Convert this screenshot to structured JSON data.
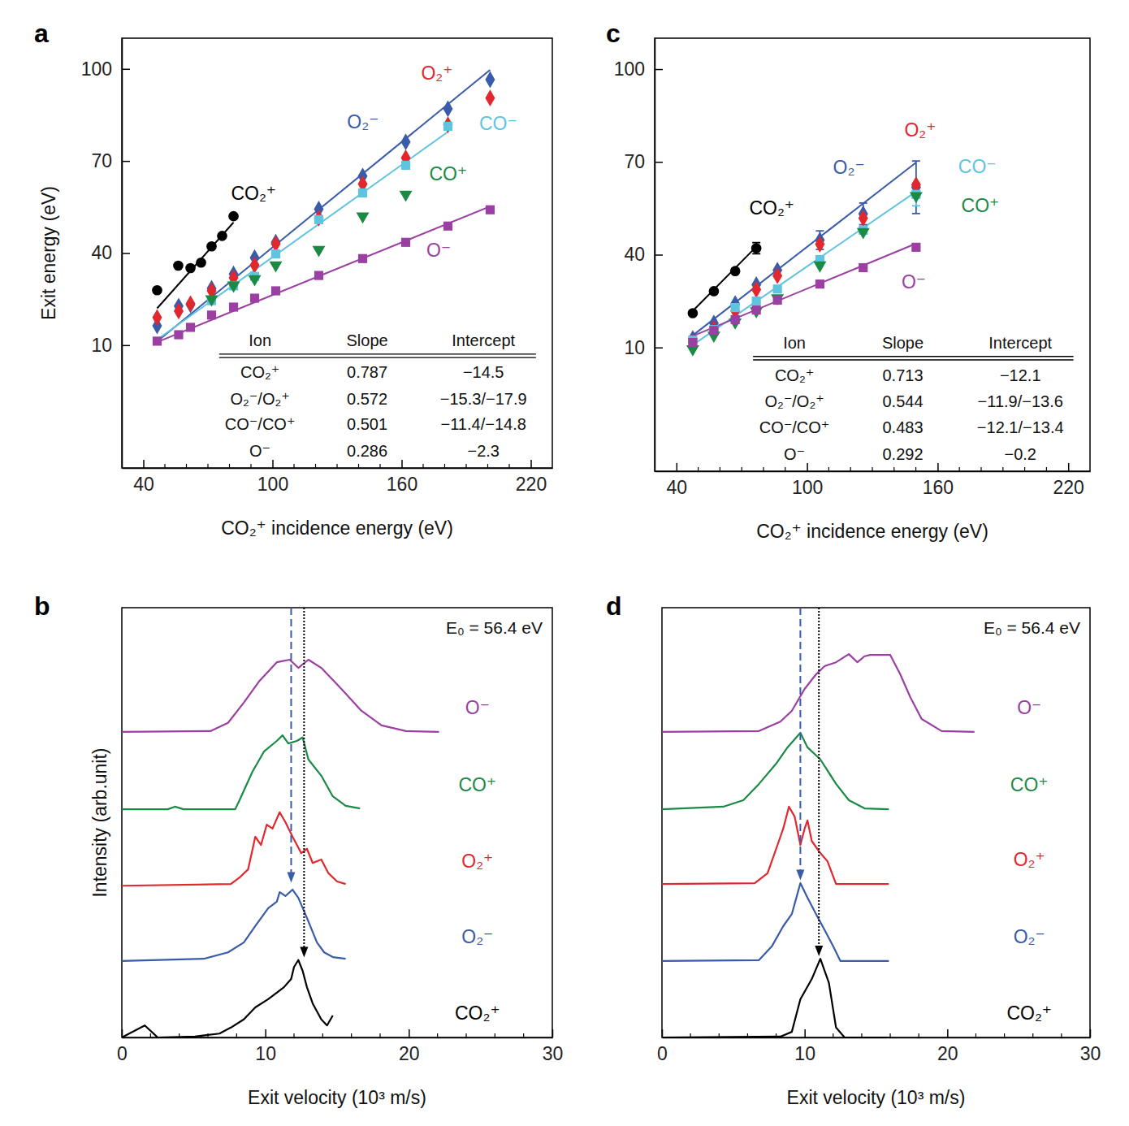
{
  "chart_data": [
    {
      "type": "scatter",
      "label": "a",
      "x_label": "CO₂⁺ incidence energy (eV)",
      "y_label": "Exit energy (eV)",
      "xlim": [
        30,
        230
      ],
      "ylim": [
        -30,
        110
      ],
      "xticks": [
        40,
        100,
        160,
        220
      ],
      "xminor_ticks": [
        50,
        60,
        70,
        80,
        90,
        110,
        120,
        130,
        140,
        150,
        170,
        180,
        190,
        200,
        210
      ],
      "yticks": [
        10,
        40,
        70,
        100
      ],
      "series": [
        {
          "name": "CO₂⁺",
          "color": "#000000",
          "marker": "circle",
          "x": [
            46.4,
            56.2,
            61.9,
            66.8,
            71.7,
            76.6,
            81.9
          ],
          "values": [
            27.9,
            35.9,
            35.1,
            36.9,
            42.2,
            45.6,
            52.0
          ],
          "fit": {
            "x": [
              46.4,
              81.9
            ],
            "values": [
              22.0,
              50.0
            ]
          }
        },
        {
          "name": "O₂⁻",
          "color": "#3a5ba9",
          "marker": "diamond",
          "x": [
            46.4,
            56.4,
            61.9,
            71.7,
            81.9,
            91.7,
            101.5,
            121.5,
            141.9,
            161.9,
            181.5,
            201.1
          ],
          "values": [
            16.3,
            22.7,
            23.2,
            28.5,
            33.2,
            38.5,
            43.5,
            54.3,
            65.1,
            76.2,
            87.0,
            96.5
          ],
          "fit": {
            "x": [
              46.4,
              201.1
            ],
            "values": [
              11.2,
              99.7
            ]
          }
        },
        {
          "name": "O₂⁺",
          "color": "#e0282e",
          "marker": "diamond",
          "x": [
            46.4,
            56.4,
            61.9,
            71.7,
            81.9,
            91.7,
            101.5,
            121.5,
            141.9,
            161.9,
            181.5,
            201.1
          ],
          "values": [
            19.0,
            21.1,
            23.5,
            27.7,
            31.9,
            36.1,
            43.0,
            51.4,
            62.5,
            71.0,
            81.8,
            90.5
          ]
        },
        {
          "name": "CO⁻",
          "color": "#5fc4e0",
          "marker": "square",
          "x": [
            46.4,
            56.4,
            61.9,
            71.7,
            81.9,
            91.7,
            101.5,
            121.5,
            141.9,
            161.9,
            181.5,
            201.1
          ],
          "values": [
            null,
            null,
            null,
            24.5,
            29.3,
            32.4,
            39.7,
            50.9,
            59.6,
            68.6,
            81.3,
            null
          ],
          "fit": {
            "x": [
              46.4,
              181.5
            ],
            "values": [
              11.8,
              79.5
            ]
          }
        },
        {
          "name": "CO⁺",
          "color": "#1b8a45",
          "marker": "triangle-down",
          "x": [
            46.4,
            56.4,
            61.9,
            71.7,
            81.9,
            91.7,
            101.5,
            121.5,
            141.9,
            161.9,
            181.5,
            201.1
          ],
          "values": [
            null,
            null,
            null,
            25.0,
            29.5,
            31.6,
            36.1,
            41.1,
            52.0,
            59.1,
            null,
            null
          ]
        },
        {
          "name": "O⁻",
          "color": "#9b3fa3",
          "marker": "square",
          "x": [
            46.4,
            56.4,
            61.9,
            71.7,
            81.9,
            91.7,
            101.5,
            121.5,
            141.9,
            161.9,
            181.5,
            201.1
          ],
          "values": [
            11.3,
            13.4,
            15.8,
            19.8,
            22.4,
            25.3,
            27.7,
            32.7,
            38.2,
            43.5,
            48.8,
            54.1
          ],
          "fit": {
            "x": [
              46.4,
              201.1
            ],
            "values": [
              11.0,
              55.2
            ]
          }
        }
      ],
      "table": {
        "columns": [
          "Ion",
          "Slope",
          "Intercept"
        ],
        "rows": [
          [
            "CO₂⁺",
            "0.787",
            "−14.5"
          ],
          [
            "O₂⁻/O₂⁺",
            "0.572",
            "−15.3/−17.9"
          ],
          [
            "CO⁻/CO⁺",
            "0.501",
            "−11.4/−14.8"
          ],
          [
            "O⁻",
            "0.286",
            "−2.3"
          ]
        ]
      }
    },
    {
      "type": "line",
      "label": "b",
      "x_label": "Exit velocity (10³ m/s)",
      "y_label": "Intensity (arb.unit)",
      "xlim": [
        0,
        30
      ],
      "ylim": [
        0,
        100
      ],
      "xticks": [
        0,
        10,
        20,
        30
      ],
      "xminor_ticks": [
        2,
        4,
        6,
        8,
        12,
        14,
        16,
        18,
        22,
        24,
        26,
        28
      ],
      "tick_labels": "x",
      "annotation": "E₀ = 56.4 eV",
      "arrows": [
        {
          "x": 11.8,
          "y": 36.0,
          "color": "#3a5ba9",
          "line_style": "dashed"
        },
        {
          "x": 12.7,
          "y": 18.6,
          "color": "#000000",
          "line_style": "dotted"
        }
      ],
      "series": [
        {
          "name": "O⁻",
          "color": "#9b3fa3",
          "x": [
            0,
            6.2,
            7.4,
            8.5,
            9.6,
            10.8,
            11.7,
            12.3,
            13.0,
            13.9,
            15.3,
            16.7,
            18.1,
            19.8,
            22.1
          ],
          "values": [
            71.1,
            71.3,
            73.2,
            77.9,
            83.0,
            87.3,
            87.9,
            86.0,
            87.9,
            86.0,
            81.1,
            76.0,
            72.6,
            71.3,
            71.1
          ]
        },
        {
          "name": "CO⁺",
          "color": "#1b8a45",
          "x": [
            0,
            3.2,
            3.7,
            4.3,
            7.9,
            8.2,
            9.1,
            9.9,
            10.8,
            11.2,
            11.6,
            12.2,
            12.6,
            13.0,
            13.9,
            14.7,
            15.6,
            16.6
          ],
          "values": [
            53.1,
            53.1,
            53.7,
            53.1,
            53.1,
            55.2,
            61.8,
            66.5,
            69.0,
            70.3,
            68.4,
            69.0,
            69.8,
            64.7,
            60.9,
            56.1,
            53.9,
            53.3
          ]
        },
        {
          "name": "O₂⁺",
          "color": "#e0282e",
          "x": [
            0,
            7.6,
            8.2,
            8.8,
            9.3,
            9.7,
            10.1,
            10.5,
            11.0,
            11.4,
            11.9,
            12.5,
            12.9,
            13.3,
            13.9,
            14.4,
            15.0,
            15.6
          ],
          "values": [
            35.3,
            35.7,
            37.2,
            39.1,
            46.7,
            44.8,
            49.5,
            48.6,
            52.4,
            50.1,
            46.7,
            42.9,
            43.9,
            40.6,
            41.4,
            38.2,
            36.3,
            35.7
          ]
        },
        {
          "name": "O₂⁻",
          "color": "#3a5ba9",
          "x": [
            0,
            5.7,
            7.4,
            8.5,
            9.3,
            10.2,
            10.8,
            11.0,
            11.4,
            11.9,
            12.3,
            12.9,
            13.6,
            14.1,
            14.7,
            15.6
          ],
          "values": [
            17.8,
            18.3,
            19.8,
            22.1,
            25.9,
            30.1,
            31.6,
            33.8,
            32.9,
            34.4,
            32.5,
            27.8,
            22.1,
            19.8,
            18.7,
            18.3
          ]
        },
        {
          "name": "CO₂⁺",
          "color": "#000000",
          "x": [
            0,
            1.6,
            2.5,
            5.1,
            6.8,
            7.6,
            8.5,
            9.3,
            10.2,
            10.8,
            11.3,
            11.8,
            12.0,
            12.3,
            12.6,
            12.9,
            13.3,
            13.9,
            14.3,
            14.7
          ],
          "values": [
            0,
            2.8,
            0,
            0.2,
            0.9,
            2.3,
            4.2,
            7.0,
            8.9,
            10.4,
            11.7,
            13.6,
            16.4,
            18.0,
            15.5,
            11.7,
            7.9,
            4.2,
            2.8,
            5.1
          ]
        }
      ]
    },
    {
      "type": "scatter",
      "label": "c",
      "x_label": "CO₂⁺ incidence energy  (eV)",
      "xlim": [
        30,
        230
      ],
      "ylim": [
        -30,
        110
      ],
      "xticks": [
        40,
        100,
        160,
        220
      ],
      "xminor_ticks": [
        50,
        60,
        70,
        80,
        90,
        110,
        120,
        130,
        140,
        150,
        170,
        180,
        190,
        200,
        210
      ],
      "yticks": [
        10,
        40,
        70,
        100
      ],
      "series": [
        {
          "name": "CO₂⁺",
          "color": "#000000",
          "marker": "circle",
          "x": [
            47.5,
            57.2,
            67.0,
            76.7
          ],
          "values": [
            21.1,
            28.2,
            34.7,
            42.1
          ],
          "errors": [
            null,
            null,
            null,
            1.8
          ],
          "fit": {
            "x": [
              47.5,
              76.7
            ],
            "values": [
              21.8,
              42.6
            ]
          }
        },
        {
          "name": "O₂⁻",
          "color": "#3a5ba9",
          "marker": "diamond",
          "x": [
            47.5,
            57.2,
            67.0,
            76.7,
            86.4,
            105.9,
            125.8,
            150.1
          ],
          "values": [
            12.9,
            17.9,
            24.2,
            30.3,
            35.0,
            44.7,
            53.2,
            61.8
          ],
          "errors": [
            null,
            null,
            null,
            null,
            null,
            3.0,
            3.5,
            8.5
          ],
          "fit": {
            "x": [
              47.5,
              150.1
            ],
            "values": [
              13.9,
              69.8
            ]
          }
        },
        {
          "name": "O₂⁺",
          "color": "#e0282e",
          "marker": "diamond",
          "x": [
            47.5,
            57.2,
            67.0,
            76.7,
            86.4,
            105.9,
            125.8,
            150.1
          ],
          "values": [
            11.8,
            16.1,
            21.8,
            28.7,
            33.2,
            43.4,
            51.8,
            62.6
          ]
        },
        {
          "name": "CO⁻",
          "color": "#5fc4e0",
          "marker": "square",
          "x": [
            47.5,
            57.2,
            67.0,
            76.7,
            86.4,
            105.9,
            125.8,
            150.1
          ],
          "values": [
            12.4,
            15.8,
            22.9,
            25.0,
            28.9,
            38.4,
            47.9,
            59.5
          ],
          "errors": [
            null,
            null,
            null,
            null,
            null,
            null,
            null,
            3.7
          ],
          "fit": {
            "x": [
              47.5,
              150.1
            ],
            "values": [
              10.8,
              60.4
            ]
          }
        },
        {
          "name": "CO⁺",
          "color": "#1b8a45",
          "marker": "triangle-down",
          "x": [
            47.5,
            57.2,
            67.0,
            76.7,
            86.4,
            105.9,
            125.8,
            150.1
          ],
          "values": [
            9.5,
            13.9,
            18.2,
            21.8,
            26.0,
            36.6,
            47.4,
            59.0
          ]
        },
        {
          "name": "O⁻",
          "color": "#9b3fa3",
          "marker": "square",
          "x": [
            47.5,
            57.2,
            67.0,
            76.7,
            86.4,
            105.9,
            125.8,
            150.1
          ],
          "values": [
            11.6,
            15.5,
            19.0,
            22.1,
            25.3,
            30.5,
            35.8,
            42.4
          ],
          "fit": {
            "x": [
              47.5,
              150.1
            ],
            "values": [
              13.7,
              43.6
            ]
          }
        }
      ],
      "table": {
        "columns": [
          "Ion",
          "Slope",
          "Intercept"
        ],
        "rows": [
          [
            "CO₂⁺",
            "0.713",
            "−12.1"
          ],
          [
            "O₂⁻/O₂⁺",
            "0.544",
            "−11.9/−13.6"
          ],
          [
            "CO⁻/CO⁺",
            "0.483",
            "−12.1/−13.4"
          ],
          [
            "O⁻",
            "0.292",
            "−0.2"
          ]
        ]
      }
    },
    {
      "type": "line",
      "label": "d",
      "x_label": "Exit velocity (10³ m/s)",
      "xlim": [
        0,
        30
      ],
      "ylim": [
        0,
        100
      ],
      "xticks": [
        0,
        10,
        20,
        30
      ],
      "xminor_ticks": [
        2,
        4,
        6,
        8,
        12,
        14,
        16,
        18,
        22,
        24,
        26,
        28
      ],
      "tick_labels": "x",
      "annotation": "E₀ = 56.4 eV",
      "arrows": [
        {
          "x": 9.7,
          "y": 36.6,
          "color": "#3a5ba9",
          "line_style": "dashed"
        },
        {
          "x": 11.0,
          "y": 18.9,
          "color": "#000000",
          "line_style": "dotted"
        }
      ],
      "series": [
        {
          "name": "O⁻",
          "color": "#9b3fa3",
          "x": [
            0,
            6.8,
            8.3,
            9.1,
            10.0,
            10.8,
            11.4,
            12.2,
            13.1,
            13.7,
            14.2,
            14.6,
            15.4,
            16.0,
            16.7,
            17.4,
            18.2,
            19.6,
            21.9
          ],
          "values": [
            71.1,
            71.3,
            73.5,
            76.0,
            81.1,
            84.5,
            86.4,
            87.3,
            89.2,
            87.3,
            88.7,
            89.0,
            89.0,
            89.0,
            84.5,
            79.2,
            74.1,
            71.3,
            71.1
          ]
        },
        {
          "name": "CO⁺",
          "color": "#1b8a45",
          "x": [
            0,
            4.3,
            5.7,
            6.8,
            8.0,
            8.8,
            9.7,
            10.2,
            11.1,
            12.2,
            13.1,
            14.2,
            15.9
          ],
          "values": [
            53.1,
            53.7,
            55.2,
            59.0,
            63.7,
            67.5,
            70.9,
            67.5,
            64.7,
            59.0,
            55.2,
            53.3,
            53.1
          ]
        },
        {
          "name": "O₂⁺",
          "color": "#e0282e",
          "x": [
            0,
            6.5,
            7.4,
            8.1,
            8.5,
            8.9,
            9.3,
            9.7,
            10.0,
            10.2,
            10.5,
            11.1,
            11.6,
            12.2,
            15.9
          ],
          "values": [
            35.7,
            35.9,
            38.2,
            44.8,
            48.6,
            53.7,
            51.4,
            44.8,
            48.6,
            50.5,
            45.7,
            42.9,
            41.0,
            35.7,
            35.7
          ]
        },
        {
          "name": "O₂⁻",
          "color": "#3a5ba9",
          "x": [
            0,
            6.8,
            7.7,
            8.5,
            9.1,
            9.7,
            10.2,
            10.8,
            11.4,
            12.0,
            12.5,
            15.9
          ],
          "values": [
            17.8,
            18.0,
            21.2,
            25.9,
            28.7,
            35.9,
            32.5,
            28.7,
            25.0,
            21.2,
            17.8,
            17.8
          ]
        },
        {
          "name": "CO₂⁺",
          "color": "#000000",
          "x": [
            0,
            8.3,
            9.1,
            9.7,
            10.5,
            11.1,
            11.7,
            12.2,
            12.8,
            15.9
          ],
          "values": [
            0,
            0.2,
            1.3,
            8.9,
            13.6,
            18.3,
            12.7,
            2.3,
            0,
            0
          ]
        }
      ]
    }
  ]
}
